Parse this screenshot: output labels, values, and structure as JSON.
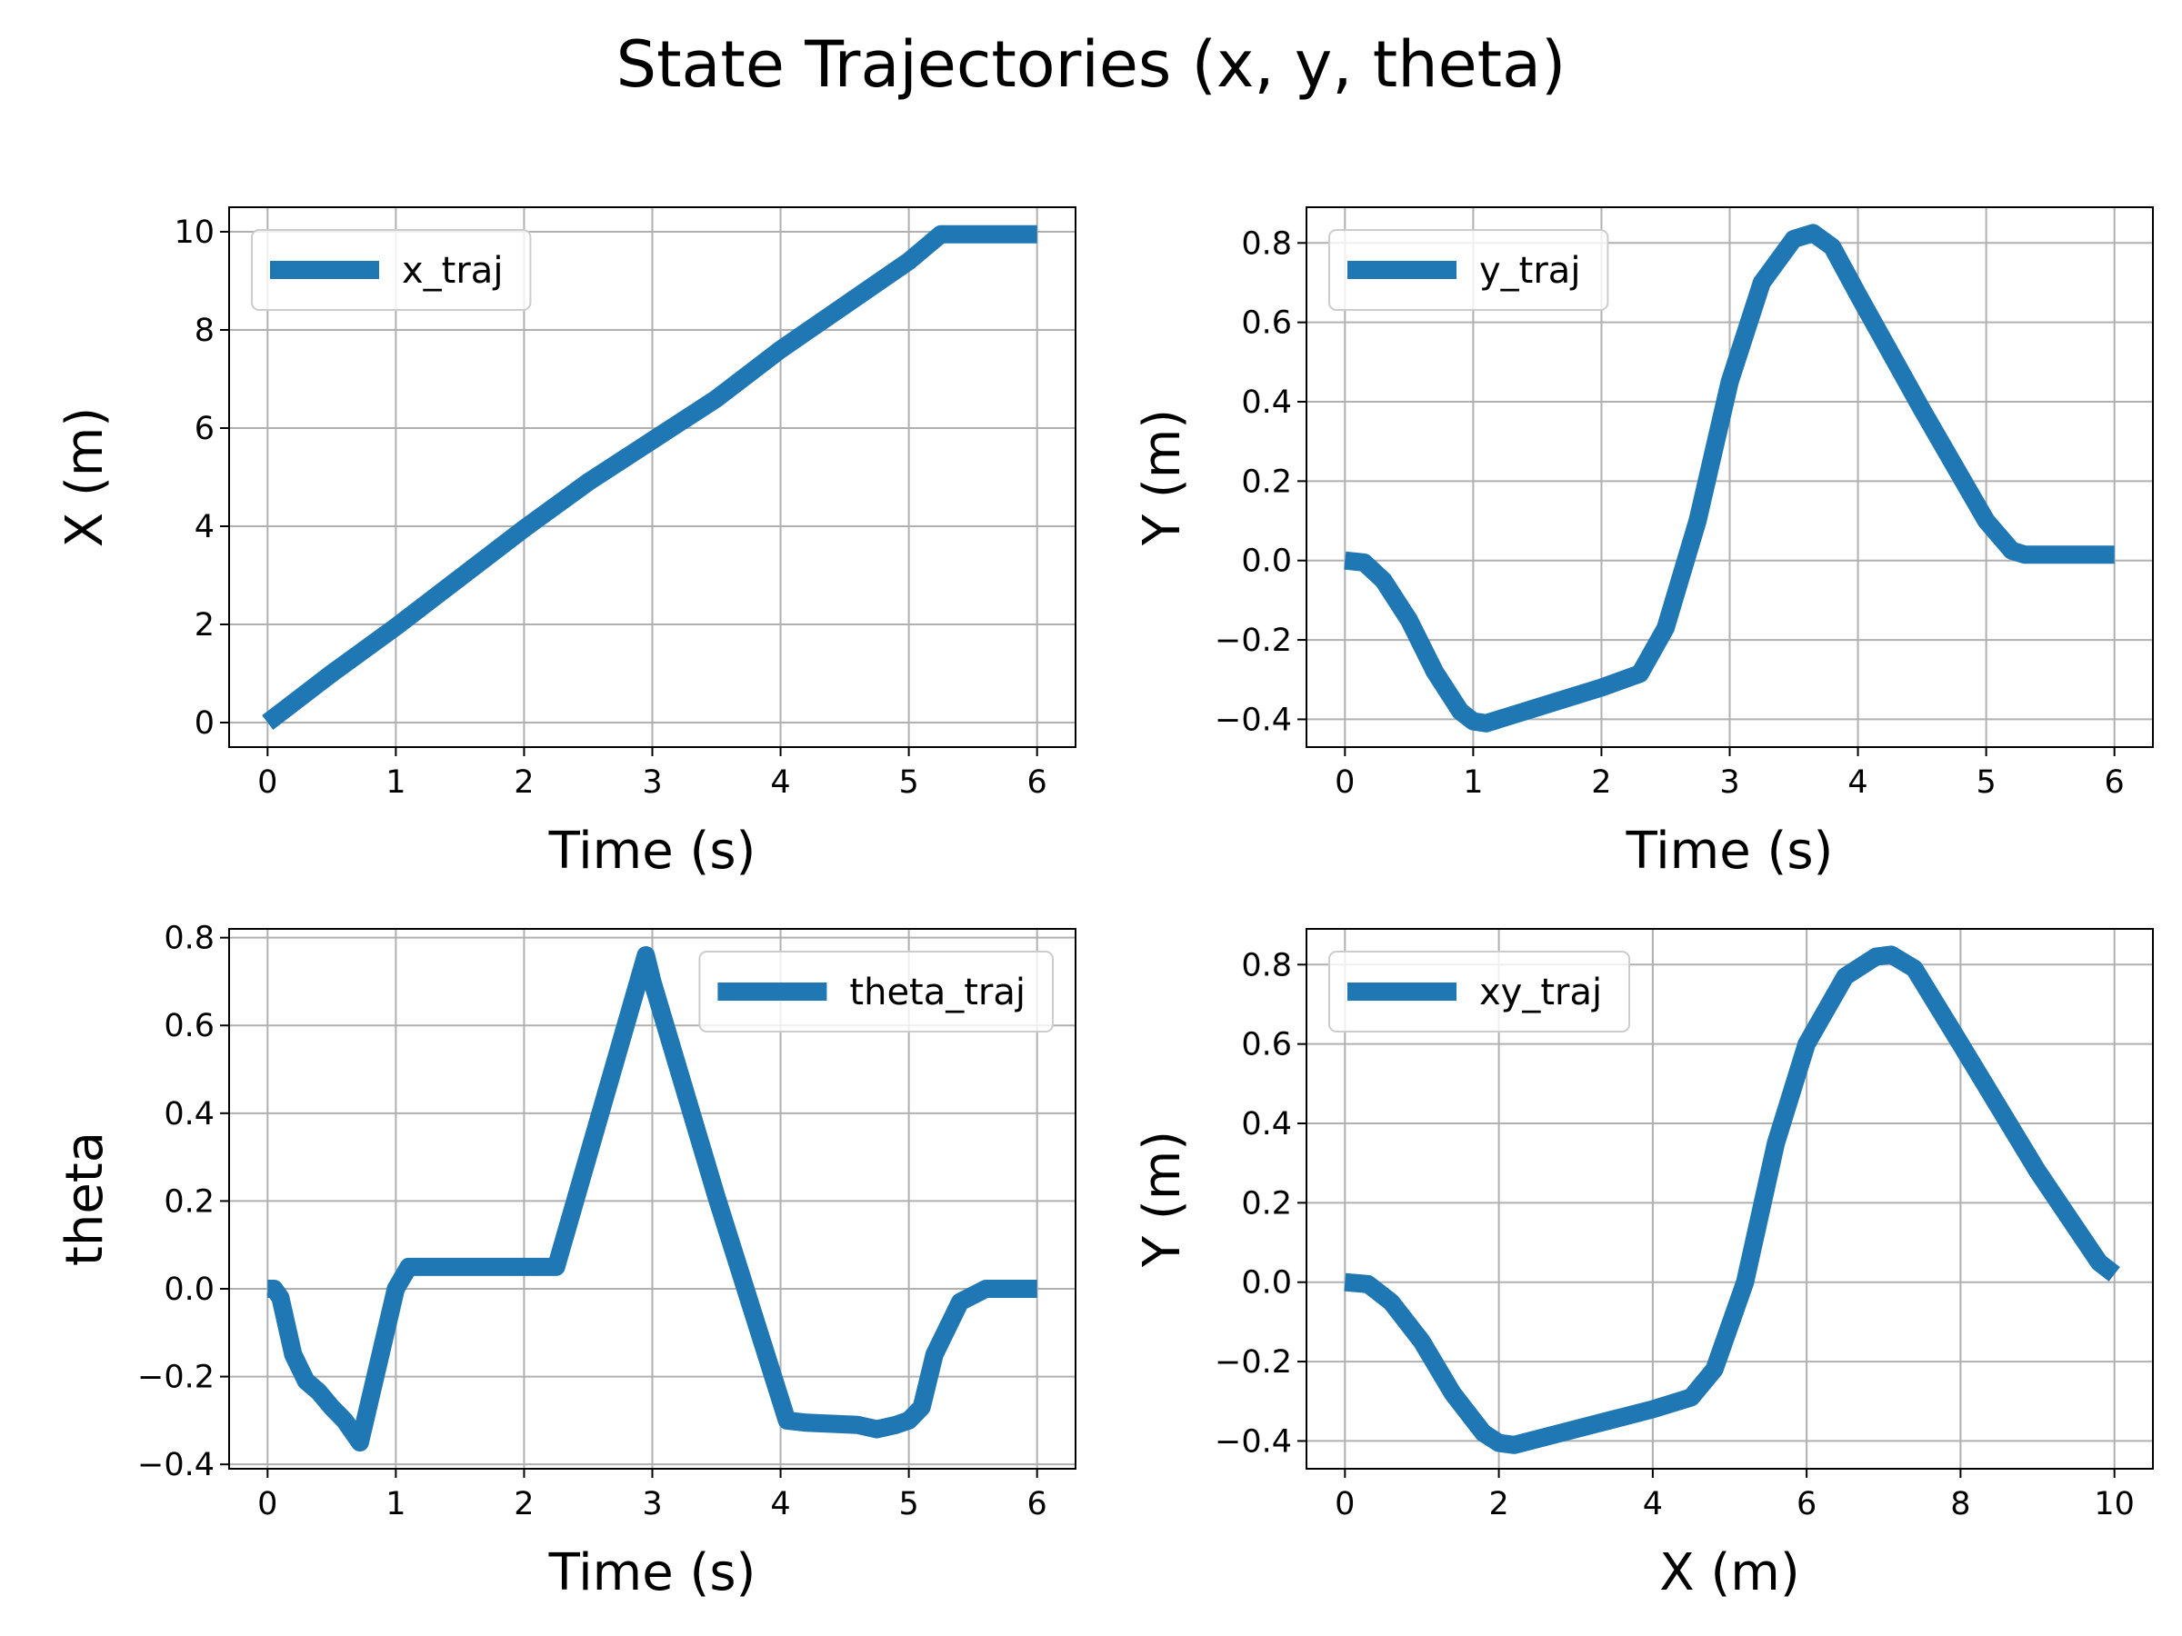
{
  "figure": {
    "title": "State Trajectories (x, y, theta)"
  },
  "colors": {
    "series": "#1f77b4",
    "grid": "#b0b0b0",
    "axis": "#000000"
  },
  "chart_data": [
    {
      "type": "line",
      "title": "",
      "xlabel": "Time (s)",
      "ylabel": "X (m)",
      "xlim": [
        -0.3,
        6.3
      ],
      "ylim": [
        -0.5,
        10.5
      ],
      "xticks": [
        0,
        1,
        2,
        3,
        4,
        5,
        6
      ],
      "xtick_labels": [
        "0",
        "1",
        "2",
        "3",
        "4",
        "5",
        "6"
      ],
      "yticks": [
        0,
        2,
        4,
        6,
        8,
        10
      ],
      "ytick_labels": [
        "0",
        "2",
        "4",
        "6",
        "8",
        "10"
      ],
      "grid": true,
      "legend_position": "upper-left",
      "series": [
        {
          "name": "x_traj",
          "x": [
            0,
            0.5,
            1.0,
            1.5,
            2.0,
            2.5,
            3.0,
            3.5,
            4.0,
            4.5,
            5.0,
            5.25,
            5.5,
            6.0
          ],
          "y": [
            0,
            1.0,
            1.95,
            2.95,
            3.95,
            4.9,
            5.75,
            6.6,
            7.6,
            8.5,
            9.4,
            9.95,
            9.95,
            9.95
          ]
        }
      ]
    },
    {
      "type": "line",
      "title": "",
      "xlabel": "Time (s)",
      "ylabel": "Y (m)",
      "xlim": [
        -0.3,
        6.3
      ],
      "ylim": [
        -0.47,
        0.89
      ],
      "xticks": [
        0,
        1,
        2,
        3,
        4,
        5,
        6
      ],
      "xtick_labels": [
        "0",
        "1",
        "2",
        "3",
        "4",
        "5",
        "6"
      ],
      "yticks": [
        -0.4,
        -0.2,
        0.0,
        0.2,
        0.4,
        0.6,
        0.8
      ],
      "ytick_labels": [
        "−0.4",
        "−0.2",
        "0.0",
        "0.2",
        "0.4",
        "0.6",
        "0.8"
      ],
      "grid": true,
      "legend_position": "upper-left",
      "series": [
        {
          "name": "y_traj",
          "x": [
            0,
            0.15,
            0.3,
            0.5,
            0.7,
            0.9,
            1.0,
            1.1,
            1.5,
            2.0,
            2.3,
            2.5,
            2.75,
            3.0,
            3.25,
            3.5,
            3.65,
            3.8,
            4.0,
            4.5,
            5.0,
            5.2,
            5.3,
            6.0
          ],
          "y": [
            0,
            -0.005,
            -0.05,
            -0.15,
            -0.28,
            -0.38,
            -0.405,
            -0.41,
            -0.37,
            -0.32,
            -0.285,
            -0.17,
            0.1,
            0.45,
            0.7,
            0.81,
            0.825,
            0.79,
            0.67,
            0.38,
            0.1,
            0.025,
            0.015,
            0.015
          ]
        }
      ]
    },
    {
      "type": "line",
      "title": "",
      "xlabel": "Time (s)",
      "ylabel": "theta",
      "xlim": [
        -0.3,
        6.3
      ],
      "ylim": [
        -0.41,
        0.82
      ],
      "xticks": [
        0,
        1,
        2,
        3,
        4,
        5,
        6
      ],
      "xtick_labels": [
        "0",
        "1",
        "2",
        "3",
        "4",
        "5",
        "6"
      ],
      "yticks": [
        -0.4,
        -0.2,
        0.0,
        0.2,
        0.4,
        0.6,
        0.8
      ],
      "ytick_labels": [
        "−0.4",
        "−0.2",
        "0.0",
        "0.2",
        "0.4",
        "0.6",
        "0.8"
      ],
      "grid": true,
      "legend_position": "upper-right",
      "series": [
        {
          "name": "theta_traj",
          "x": [
            0,
            0.05,
            0.1,
            0.2,
            0.3,
            0.4,
            0.5,
            0.6,
            0.72,
            0.8,
            1.0,
            1.1,
            1.2,
            2.0,
            2.25,
            2.95,
            3.0,
            3.5,
            4.05,
            4.2,
            4.6,
            4.75,
            4.9,
            5.0,
            5.1,
            5.2,
            5.4,
            5.6,
            6.0
          ],
          "y": [
            0,
            0,
            -0.02,
            -0.15,
            -0.21,
            -0.235,
            -0.27,
            -0.3,
            -0.35,
            -0.25,
            0.0,
            0.05,
            0.05,
            0.05,
            0.05,
            0.76,
            0.7,
            0.21,
            -0.3,
            -0.305,
            -0.31,
            -0.32,
            -0.31,
            -0.3,
            -0.27,
            -0.15,
            -0.03,
            0.0,
            0.0
          ]
        }
      ]
    },
    {
      "type": "line",
      "title": "",
      "xlabel": "X (m)",
      "ylabel": "Y (m)",
      "xlim": [
        -0.5,
        10.5
      ],
      "ylim": [
        -0.47,
        0.89
      ],
      "xticks": [
        0,
        2,
        4,
        6,
        8,
        10
      ],
      "xtick_labels": [
        "0",
        "2",
        "4",
        "6",
        "8",
        "10"
      ],
      "yticks": [
        -0.4,
        -0.2,
        0.0,
        0.2,
        0.4,
        0.6,
        0.8
      ],
      "ytick_labels": [
        "−0.4",
        "−0.2",
        "0.0",
        "0.2",
        "0.4",
        "0.6",
        "0.8"
      ],
      "grid": true,
      "legend_position": "upper-left",
      "series": [
        {
          "name": "xy_traj",
          "x": [
            0,
            0.3,
            0.6,
            1.0,
            1.4,
            1.8,
            2.0,
            2.2,
            3.0,
            4.0,
            4.5,
            4.8,
            5.2,
            5.6,
            6.0,
            6.5,
            6.9,
            7.1,
            7.4,
            8.0,
            9.0,
            9.8,
            10.0
          ],
          "y": [
            0,
            -0.005,
            -0.05,
            -0.15,
            -0.28,
            -0.38,
            -0.405,
            -0.41,
            -0.37,
            -0.32,
            -0.29,
            -0.22,
            0.0,
            0.35,
            0.6,
            0.77,
            0.82,
            0.825,
            0.79,
            0.6,
            0.28,
            0.05,
            0.02
          ]
        }
      ]
    }
  ]
}
